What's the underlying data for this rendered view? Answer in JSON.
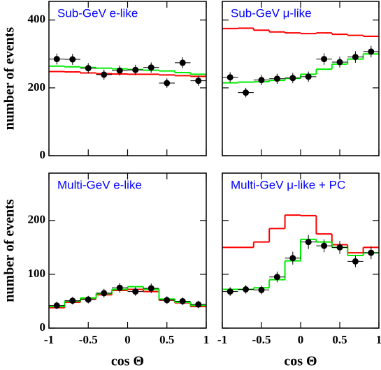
{
  "chart_data": [
    {
      "type": "histogram",
      "title": "Sub-GeV e-like",
      "title_color": "#0000ff",
      "ylabel": "number of events",
      "bins": [
        -1,
        -0.8,
        -0.6,
        -0.4,
        -0.2,
        0,
        0.2,
        0.4,
        0.6,
        0.8,
        1
      ],
      "xlim": [
        -1,
        1
      ],
      "xticks": [
        -1,
        -0.5,
        0,
        0.5,
        1
      ],
      "xtick_labels": false,
      "ylim": [
        0,
        455
      ],
      "yticks": [
        0,
        200,
        400
      ],
      "ytick_labels": true,
      "series": [
        {
          "style": "step",
          "color": "#ff0000",
          "values": [
            248,
            247,
            244,
            242,
            241,
            240,
            240,
            238,
            236,
            234
          ]
        },
        {
          "style": "step",
          "color": "#00ee00",
          "values": [
            264,
            262,
            260,
            258,
            256,
            254,
            252,
            250,
            245,
            240
          ]
        },
        {
          "style": "points",
          "color": "#000000",
          "values": [
            285,
            284,
            258,
            239,
            251,
            253,
            260,
            214,
            274,
            221
          ],
          "errors": [
            16,
            16,
            15,
            15,
            15,
            15,
            15,
            14,
            16,
            15
          ]
        }
      ]
    },
    {
      "type": "histogram",
      "title": "Sub-GeV μ-like",
      "title_color": "#0000ff",
      "bins": [
        -1,
        -0.8,
        -0.6,
        -0.4,
        -0.2,
        0,
        0.2,
        0.4,
        0.6,
        0.8,
        1
      ],
      "xlim": [
        -1,
        1
      ],
      "xticks": [
        -1,
        -0.5,
        0,
        0.5,
        1
      ],
      "xtick_labels": false,
      "ylim": [
        0,
        455
      ],
      "yticks": [
        0,
        200,
        400
      ],
      "ytick_labels": false,
      "series": [
        {
          "style": "step",
          "color": "#ff0000",
          "values": [
            375,
            376,
            370,
            365,
            362,
            360,
            362,
            358,
            355,
            352
          ]
        },
        {
          "style": "step",
          "color": "#00ee00",
          "values": [
            215,
            217,
            218,
            222,
            228,
            240,
            255,
            270,
            285,
            300
          ]
        },
        {
          "style": "points",
          "color": "#000000",
          "values": [
            231,
            186,
            223,
            227,
            229,
            233,
            285,
            276,
            291,
            307
          ],
          "errors": [
            15,
            14,
            15,
            15,
            15,
            15,
            17,
            16,
            17,
            17
          ]
        }
      ]
    },
    {
      "type": "histogram",
      "title": "Multi-GeV e-like",
      "title_color": "#0000ff",
      "ylabel": "number of events",
      "xlabel": "cos Θ",
      "bins": [
        -1,
        -0.8,
        -0.6,
        -0.4,
        -0.2,
        0,
        0.2,
        0.4,
        0.6,
        0.8,
        1
      ],
      "xlim": [
        -1,
        1
      ],
      "xticks": [
        -1,
        -0.5,
        0,
        0.5,
        1
      ],
      "xtick_labels": true,
      "ylim": [
        0,
        288
      ],
      "yticks": [
        0,
        100,
        200
      ],
      "ytick_labels": true,
      "series": [
        {
          "style": "step",
          "color": "#ff0000",
          "values": [
            38,
            48,
            55,
            62,
            70,
            72,
            68,
            52,
            47,
            40
          ]
        },
        {
          "style": "step",
          "color": "#00ee00",
          "values": [
            40,
            50,
            56,
            64,
            72,
            77,
            72,
            54,
            48,
            42
          ]
        },
        {
          "style": "points",
          "color": "#000000",
          "values": [
            42,
            51,
            53,
            65,
            75,
            68,
            74,
            52,
            50,
            44
          ],
          "errors": [
            7,
            7,
            7,
            8,
            9,
            8,
            9,
            7,
            7,
            7
          ]
        }
      ]
    },
    {
      "type": "histogram",
      "title": "Multi-GeV μ-like + PC",
      "title_color": "#0000ff",
      "xlabel": "cos Θ",
      "bins": [
        -1,
        -0.8,
        -0.6,
        -0.4,
        -0.2,
        0,
        0.2,
        0.4,
        0.6,
        0.8,
        1
      ],
      "xlim": [
        -1,
        1
      ],
      "xticks": [
        -1,
        -0.5,
        0,
        0.5,
        1
      ],
      "xtick_labels": true,
      "ylim": [
        0,
        288
      ],
      "yticks": [
        0,
        100,
        200
      ],
      "ytick_labels": false,
      "series": [
        {
          "style": "step",
          "color": "#ff0000",
          "values": [
            150,
            150,
            160,
            185,
            210,
            209,
            175,
            155,
            140,
            150
          ]
        },
        {
          "style": "step",
          "color": "#00ee00",
          "values": [
            72,
            72,
            75,
            90,
            125,
            165,
            160,
            150,
            135,
            140
          ]
        },
        {
          "style": "points",
          "color": "#000000",
          "values": [
            68,
            72,
            71,
            95,
            130,
            160,
            153,
            150,
            124,
            140
          ],
          "errors": [
            8,
            8,
            8,
            10,
            12,
            13,
            12,
            12,
            11,
            12
          ]
        }
      ]
    }
  ]
}
